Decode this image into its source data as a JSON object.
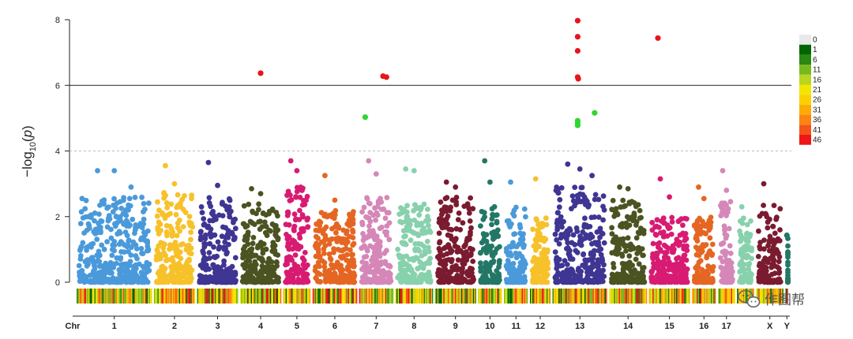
{
  "chart_data": {
    "type": "scatter",
    "subtype": "manhattan",
    "ylabel": "-log10(p)",
    "xlabel": "Chr",
    "ylim": [
      0,
      8
    ],
    "yticks": [
      0,
      2,
      4,
      6,
      8
    ],
    "threshold_solid": 6,
    "threshold_dashed": 4,
    "chromosomes": [
      {
        "label": "1",
        "labelled": true,
        "color": "#4a9adb",
        "size": 11,
        "max_bg": 2.6,
        "peaks": [
          3.4,
          3.4,
          2.9
        ]
      },
      {
        "label": "2",
        "labelled": true,
        "color": "#f7c12a",
        "size": 6,
        "max_bg": 2.9,
        "peaks": [
          3.55,
          3.0
        ]
      },
      {
        "label": "3",
        "labelled": true,
        "color": "#3f3592",
        "size": 6,
        "max_bg": 2.6,
        "peaks": [
          3.65,
          2.95
        ]
      },
      {
        "label": "4",
        "labelled": true,
        "color": "#4b5321",
        "size": 6,
        "max_bg": 2.4,
        "peaks": [
          2.85,
          2.7
        ]
      },
      {
        "label": "5",
        "labelled": true,
        "color": "#d81b72",
        "size": 4,
        "max_bg": 2.9,
        "peaks": [
          3.7,
          3.4
        ]
      },
      {
        "label": "6",
        "labelled": true,
        "color": "#e56622",
        "size": 6.5,
        "max_bg": 2.2,
        "peaks": [
          3.25,
          2.5
        ]
      },
      {
        "label": "7",
        "labelled": true,
        "color": "#d587b8",
        "size": 5,
        "max_bg": 2.6,
        "peaks": [
          3.7,
          3.3
        ]
      },
      {
        "label": "8",
        "labelled": true,
        "color": "#88d1ad",
        "size": 5.5,
        "max_bg": 2.4,
        "peaks": [
          3.45,
          3.4
        ]
      },
      {
        "label": "9",
        "labelled": true,
        "color": "#7a1b30",
        "size": 6,
        "max_bg": 2.6,
        "peaks": [
          3.05,
          2.9
        ]
      },
      {
        "label": "10",
        "labelled": true,
        "color": "#237766",
        "size": 3.5,
        "max_bg": 2.3,
        "peaks": [
          3.7,
          3.05
        ]
      },
      {
        "label": "11",
        "labelled": true,
        "color": "#4a9adb",
        "size": 3.5,
        "max_bg": 2.3,
        "peaks": [
          3.05
        ]
      },
      {
        "label": "12",
        "labelled": true,
        "color": "#f7c12a",
        "size": 3,
        "max_bg": 2.0,
        "peaks": [
          3.15
        ]
      },
      {
        "label": "13",
        "labelled": true,
        "color": "#3f3592",
        "size": 8,
        "max_bg": 2.9,
        "peaks": [
          3.6,
          3.45,
          3.25
        ]
      },
      {
        "label": "14",
        "labelled": true,
        "color": "#4b5321",
        "size": 5.5,
        "max_bg": 2.5,
        "peaks": [
          2.9,
          2.85
        ]
      },
      {
        "label": "15",
        "labelled": true,
        "color": "#d81b72",
        "size": 6,
        "max_bg": 2.0,
        "peaks": [
          3.15,
          2.6
        ]
      },
      {
        "label": "16",
        "labelled": true,
        "color": "#e56622",
        "size": 3.5,
        "max_bg": 2.0,
        "peaks": [
          2.9,
          2.55
        ]
      },
      {
        "label": "17",
        "labelled": true,
        "color": "#d587b8",
        "size": 2.5,
        "max_bg": 2.5,
        "peaks": [
          3.4,
          2.8
        ]
      },
      {
        "label": "18",
        "labelled": false,
        "color": "#88d1ad",
        "size": 2.5,
        "max_bg": 2.0,
        "peaks": [
          2.3
        ]
      },
      {
        "label": "X",
        "labelled": true,
        "color": "#7a1b30",
        "size": 4,
        "max_bg": 2.4,
        "peaks": [
          3.0
        ]
      },
      {
        "label": "Y",
        "labelled": true,
        "color": "#237766",
        "size": 0.4,
        "max_bg": 1.4,
        "peaks": []
      }
    ],
    "highlight_points": [
      {
        "chr": "4",
        "pos": 0.5,
        "y": 6.37,
        "color": "#e8141c"
      },
      {
        "chr": "7",
        "pos": 0.7,
        "y": 6.28,
        "color": "#e8141c"
      },
      {
        "chr": "7",
        "pos": 0.8,
        "y": 6.25,
        "color": "#e8141c"
      },
      {
        "chr": "7",
        "pos": 0.18,
        "y": 5.03,
        "color": "#2ed630"
      },
      {
        "chr": "13",
        "pos": 0.46,
        "y": 7.97,
        "color": "#e8141c"
      },
      {
        "chr": "13",
        "pos": 0.46,
        "y": 7.48,
        "color": "#e8141c"
      },
      {
        "chr": "13",
        "pos": 0.46,
        "y": 7.05,
        "color": "#e8141c"
      },
      {
        "chr": "13",
        "pos": 0.46,
        "y": 6.25,
        "color": "#e8141c"
      },
      {
        "chr": "13",
        "pos": 0.47,
        "y": 6.2,
        "color": "#e8141c"
      },
      {
        "chr": "13",
        "pos": 0.46,
        "y": 4.92,
        "color": "#2ed630"
      },
      {
        "chr": "13",
        "pos": 0.46,
        "y": 4.85,
        "color": "#2ed630"
      },
      {
        "chr": "13",
        "pos": 0.46,
        "y": 4.78,
        "color": "#2ed630"
      },
      {
        "chr": "13",
        "pos": 0.77,
        "y": 5.16,
        "color": "#2ed630"
      },
      {
        "chr": "15",
        "pos": 0.22,
        "y": 7.44,
        "color": "#e8141c"
      },
      {
        "chr": "Y",
        "pos": 0.5,
        "y": 1.43,
        "color": "#237766"
      }
    ],
    "density_legend": [
      {
        "label": "0",
        "color": "#e9e9e9"
      },
      {
        "label": "1",
        "color": "#006400"
      },
      {
        "label": "6",
        "color": "#2a8712"
      },
      {
        "label": "11",
        "color": "#77b81e"
      },
      {
        "label": "16",
        "color": "#bad51f"
      },
      {
        "label": "21",
        "color": "#f2e600"
      },
      {
        "label": "26",
        "color": "#fbd000"
      },
      {
        "label": "31",
        "color": "#fdac06"
      },
      {
        "label": "36",
        "color": "#fb8412"
      },
      {
        "label": "41",
        "color": "#f5531a"
      },
      {
        "label": "46",
        "color": "#ee1616"
      }
    ],
    "grid": false
  },
  "watermark": {
    "text": "作图帮",
    "icon": "wechat-icon"
  }
}
